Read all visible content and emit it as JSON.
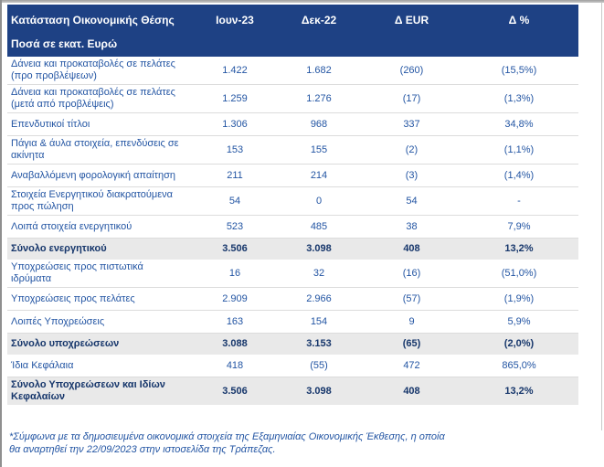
{
  "colors": {
    "header_bg": "#1e4184",
    "body_text": "#2355a3",
    "total_text": "#16366b",
    "total_row_bg": "#e9e9e9"
  },
  "table": {
    "title": "Κατάσταση Οικονομικής Θέσης",
    "subtitle": "Ποσά σε εκατ. Ευρώ",
    "columns": [
      "Ιουν-23",
      "Δεκ-22",
      "Δ EUR",
      "Δ %"
    ],
    "rows": [
      {
        "label": "Δάνεια και προκαταβολές σε πελάτες (προ προβλέψεων)",
        "jun23": "1.422",
        "dec22": "1.682",
        "d_eur": "(260)",
        "d_pct": "(15,5%)",
        "is_total": false
      },
      {
        "label": "Δάνεια και προκαταβολές σε πελάτες (μετά από προβλέψεις)",
        "jun23": "1.259",
        "dec22": "1.276",
        "d_eur": "(17)",
        "d_pct": "(1,3%)",
        "is_total": false
      },
      {
        "label": "Επενδυτικοί τίτλοι",
        "jun23": "1.306",
        "dec22": "968",
        "d_eur": "337",
        "d_pct": "34,8%",
        "is_total": false
      },
      {
        "label": "Πάγια & άυλα στοιχεία, επενδύσεις σε ακίνητα",
        "jun23": "153",
        "dec22": "155",
        "d_eur": "(2)",
        "d_pct": "(1,1%)",
        "is_total": false
      },
      {
        "label": "Αναβαλλόμενη φορολογική απαίτηση",
        "jun23": "211",
        "dec22": "214",
        "d_eur": "(3)",
        "d_pct": "(1,4%)",
        "is_total": false
      },
      {
        "label": "Στοιχεία Ενεργητικού διακρατούμενα προς πώληση",
        "jun23": "54",
        "dec22": "0",
        "d_eur": "54",
        "d_pct": "-",
        "is_total": false
      },
      {
        "label": "Λοιπά στοιχεία ενεργητικού",
        "jun23": "523",
        "dec22": "485",
        "d_eur": "38",
        "d_pct": "7,9%",
        "is_total": false
      },
      {
        "label": "Σύνολο ενεργητικού",
        "jun23": "3.506",
        "dec22": "3.098",
        "d_eur": "408",
        "d_pct": "13,2%",
        "is_total": true
      },
      {
        "label": "Υποχρεώσεις προς πιστωτικά ιδρύματα",
        "jun23": "16",
        "dec22": "32",
        "d_eur": "(16)",
        "d_pct": "(51,0%)",
        "is_total": false
      },
      {
        "label": "Υποχρεώσεις προς πελάτες",
        "jun23": "2.909",
        "dec22": "2.966",
        "d_eur": "(57)",
        "d_pct": "(1,9%)",
        "is_total": false
      },
      {
        "label": "Λοιπές Υποχρεώσεις",
        "jun23": "163",
        "dec22": "154",
        "d_eur": "9",
        "d_pct": "5,9%",
        "is_total": false
      },
      {
        "label": "Σύνολο υποχρεώσεων",
        "jun23": "3.088",
        "dec22": "3.153",
        "d_eur": "(65)",
        "d_pct": "(2,0%)",
        "is_total": true
      },
      {
        "label": "Ίδια Κεφάλαια",
        "jun23": "418",
        "dec22": "(55)",
        "d_eur": "472",
        "d_pct": "865,0%",
        "is_total": false
      },
      {
        "label": "Σύνολο Υποχρεώσεων και Ιδίων Κεφαλαίων",
        "jun23": "3.506",
        "dec22": "3.098",
        "d_eur": "408",
        "d_pct": "13,2%",
        "is_total": true
      }
    ]
  },
  "footnote": {
    "line1": "*Σύμφωνα με τα δημοσιευμένα οικονομικά στοιχεία της Εξαμηνιαίας Οικονομικής Έκθεσης, η οποία",
    "line2": "θα αναρτηθεί την 22/09/2023 στην ιστοσελίδα της Τράπεζας."
  }
}
